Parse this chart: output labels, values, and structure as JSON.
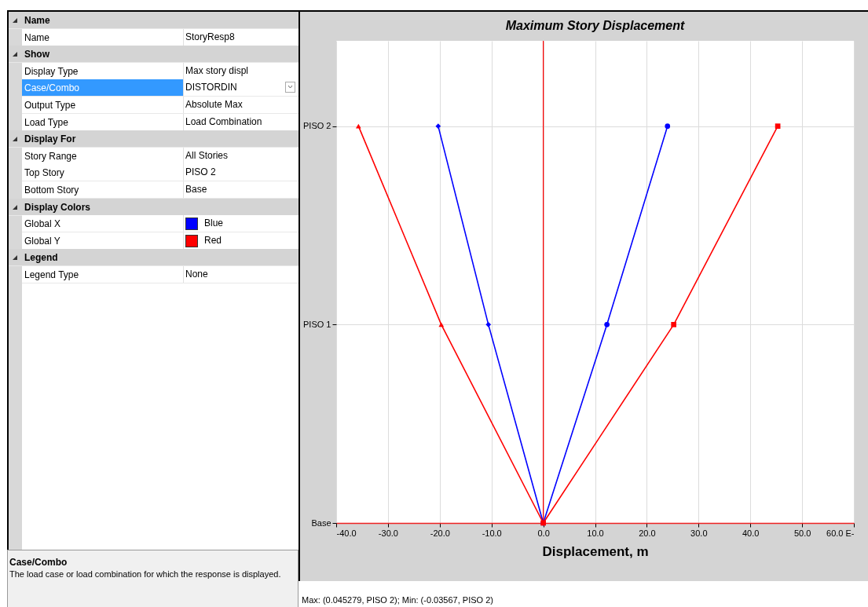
{
  "chart_data": [
    {
      "type": "other",
      "y_categories": [
        "Name",
        "Name",
        "Show",
        "Display Type",
        "Case/Combo",
        "Output Type",
        "Load Type",
        "Display For",
        "Story Range",
        "Top Story",
        "Bottom Story",
        "Display Colors",
        "Global X",
        "Global Y",
        "Legend",
        "Legend Type"
      ],
      "cell_labels": [
        [
          null
        ],
        [
          "StoryResp8"
        ],
        [
          null
        ],
        [
          "Max story displ"
        ],
        [
          "DISTORDIN"
        ],
        [
          "Absolute Max"
        ],
        [
          "Load Combination"
        ],
        [
          null
        ],
        [
          "All Stories"
        ],
        [
          "PISO 2"
        ],
        [
          "Base"
        ],
        [
          null
        ],
        [
          "Blue"
        ],
        [
          "Red"
        ],
        [
          null
        ],
        [
          "None"
        ]
      ],
      "colors": [
        null,
        null,
        null,
        null,
        null,
        null,
        null,
        null,
        null,
        null,
        null,
        null,
        "#0000ff",
        "#ff0000",
        null,
        null
      ],
      "annotations": [
        "Case/Combo",
        "The load case or load combination for which the response is displayed."
      ]
    },
    {
      "type": "line",
      "orientation": "horizontal",
      "title": "Maximum Story Displacement",
      "xlabel": "Displacement, m",
      "categories": [
        "PISO 2",
        "PISO 1",
        "Base"
      ],
      "xlim": [
        -40,
        60
      ],
      "xticks": [
        {
          "value": -40,
          "label": "-40.0"
        },
        {
          "value": -30,
          "label": "-30.0"
        },
        {
          "value": -20,
          "label": "-20.0"
        },
        {
          "value": -10,
          "label": "-10.0"
        },
        {
          "value": 0,
          "label": "0.0"
        },
        {
          "value": 10,
          "label": "10.0"
        },
        {
          "value": 20,
          "label": "20.0"
        },
        {
          "value": 30,
          "label": "30.0"
        },
        {
          "value": 40,
          "label": "40.0"
        },
        {
          "value": 50,
          "label": "50.0"
        },
        {
          "value": 60,
          "label": "60.0 E-"
        }
      ],
      "grid": true,
      "series": [
        {
          "color": "#0000ff",
          "marker": "diamond",
          "values": [
            -20.3,
            -10.6,
            0
          ]
        },
        {
          "color": "#0000ff",
          "marker": "circle",
          "values": [
            24.0,
            12.3,
            0
          ]
        },
        {
          "color": "#ff0000",
          "marker": "triangle",
          "values": [
            -35.7,
            -19.7,
            0
          ]
        },
        {
          "color": "#ff0000",
          "marker": "square",
          "values": [
            45.3,
            25.2,
            0
          ]
        }
      ],
      "ref_lines": [
        {
          "axis": "x",
          "value": 0,
          "color": "#ff0000"
        }
      ],
      "annotations": [
        "Max: (0.045279, PISO 2);  Min: (-0.03567, PISO 2)"
      ]
    }
  ]
}
